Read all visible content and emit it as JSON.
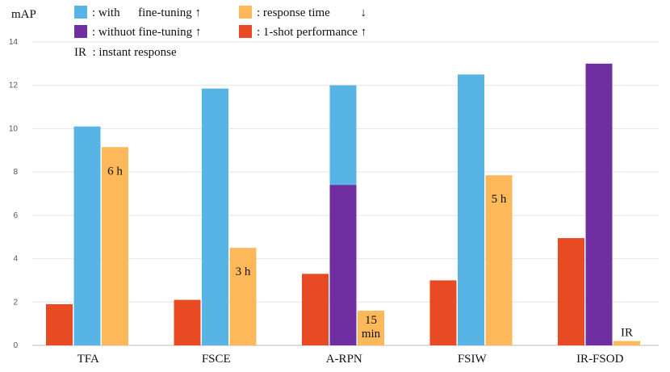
{
  "chart_data": {
    "type": "bar",
    "ylabel": "mAP",
    "ylim": [
      0,
      14
    ],
    "yticks": [
      0,
      2,
      4,
      6,
      8,
      10,
      12,
      14
    ],
    "grid": true,
    "categories": [
      "TFA",
      "FSCE",
      "A-RPN",
      "FSIW",
      "IR-FSOD"
    ],
    "colors": {
      "one_shot": "#e84a24",
      "with_ft": "#59b4e6",
      "without_ft": "#6f2fa0",
      "response": "#fdb85a"
    },
    "bars": [
      {
        "category": "TFA",
        "one_shot": 1.9,
        "with_ft": 10.1,
        "without_ft": null,
        "response": 9.15,
        "label": "6 h"
      },
      {
        "category": "FSCE",
        "one_shot": 2.1,
        "with_ft": 11.85,
        "without_ft": null,
        "response": 4.5,
        "label": "3 h"
      },
      {
        "category": "A-RPN",
        "one_shot": 3.3,
        "with_ft": 12.0,
        "without_ft": 7.4,
        "response": 1.6,
        "label": "15\nmin"
      },
      {
        "category": "FSIW",
        "one_shot": 3.0,
        "with_ft": 12.5,
        "without_ft": null,
        "response": 7.85,
        "label": "5 h"
      },
      {
        "category": "IR-FSOD",
        "one_shot": 4.95,
        "with_ft": null,
        "without_ft": 13.0,
        "response": 0.2,
        "label": "IR"
      }
    ],
    "legend": [
      {
        "key": "with_ft",
        "text": ": with      fine-tuning ↑"
      },
      {
        "key": "without_ft",
        "text": ": withuot fine-tuning ↑"
      },
      {
        "key": "response",
        "text": ": response time          ↓"
      },
      {
        "key": "one_shot",
        "text": ": 1-shot performance ↑"
      }
    ],
    "legend_note": "IR  : instant response"
  }
}
